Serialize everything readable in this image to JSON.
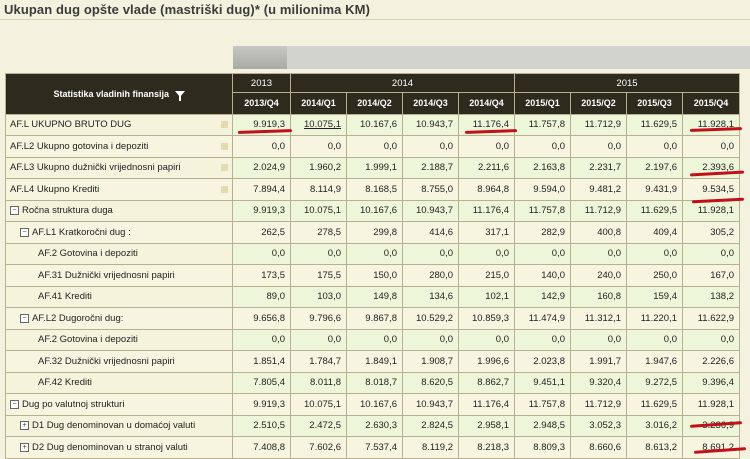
{
  "page": {
    "title": "Ukupan dug opšte vlade (mastriški dug)* (u milionima KM)"
  },
  "table": {
    "stub_header": "Statistika vladinih finansija",
    "years": [
      "2013",
      "2014",
      "2015"
    ],
    "periods": [
      "2013/Q4",
      "2014/Q1",
      "2014/Q2",
      "2014/Q3",
      "2014/Q4",
      "2015/Q1",
      "2015/Q2",
      "2015/Q3",
      "2015/Q4"
    ],
    "rows": [
      {
        "label": "AF.L UKUPNO BRUTO DUG",
        "values": [
          "9.919,3",
          "10.075,1",
          "10.167,6",
          "10.943,7",
          "11.176,4",
          "11.757,8",
          "11.712,9",
          "11.629,5",
          "11.928,1"
        ]
      },
      {
        "label": "AF.L2 Ukupno gotovina i depoziti",
        "values": [
          "0,0",
          "0,0",
          "0,0",
          "0,0",
          "0,0",
          "0,0",
          "0,0",
          "0,0",
          "0,0"
        ]
      },
      {
        "label": "AF.L3 Ukupno dužnički vrijednosni papiri",
        "values": [
          "2.024,9",
          "1.960,2",
          "1.999,1",
          "2.188,7",
          "2.211,6",
          "2.163,8",
          "2.231,7",
          "2.197,6",
          "2.393,6"
        ]
      },
      {
        "label": "AF.L4 Ukupno Krediti",
        "values": [
          "7.894,4",
          "8.114,9",
          "8.168,5",
          "8.755,0",
          "8.964,8",
          "9.594,0",
          "9.481,2",
          "9.431,9",
          "9.534,5"
        ]
      },
      {
        "label": "Ročna struktura duga",
        "values": [
          "9.919,3",
          "10.075,1",
          "10.167,6",
          "10.943,7",
          "11.176,4",
          "11.757,8",
          "11.712,9",
          "11.629,5",
          "11.928,1"
        ]
      },
      {
        "label": "AF.L1 Kratkoročni dug :",
        "values": [
          "262,5",
          "278,5",
          "299,8",
          "414,6",
          "317,1",
          "282,9",
          "400,8",
          "409,4",
          "305,2"
        ]
      },
      {
        "label": "AF.2 Gotovina i depoziti",
        "values": [
          "0,0",
          "0,0",
          "0,0",
          "0,0",
          "0,0",
          "0,0",
          "0,0",
          "0,0",
          "0,0"
        ]
      },
      {
        "label": "AF.31 Dužnički vrijednosni papiri",
        "values": [
          "173,5",
          "175,5",
          "150,0",
          "280,0",
          "215,0",
          "140,0",
          "240,0",
          "250,0",
          "167,0"
        ]
      },
      {
        "label": "AF.41 Krediti",
        "values": [
          "89,0",
          "103,0",
          "149,8",
          "134,6",
          "102,1",
          "142,9",
          "160,8",
          "159,4",
          "138,2"
        ]
      },
      {
        "label": "AF.L2 Dugoročni dug:",
        "values": [
          "9.656,8",
          "9.796,6",
          "9.867,8",
          "10.529,2",
          "10.859,3",
          "11.474,9",
          "11.312,1",
          "11.220,1",
          "11.622,9"
        ]
      },
      {
        "label": "AF.2 Gotovina i depoziti",
        "values": [
          "0,0",
          "0,0",
          "0,0",
          "0,0",
          "0,0",
          "0,0",
          "0,0",
          "0,0",
          "0,0"
        ]
      },
      {
        "label": "AF.32 Dužnički vrijednosni papiri",
        "values": [
          "1.851,4",
          "1.784,7",
          "1.849,1",
          "1.908,7",
          "1.996,6",
          "2.023,8",
          "1.991,7",
          "1.947,6",
          "2.226,6"
        ]
      },
      {
        "label": "AF.42 Krediti",
        "values": [
          "7.805,4",
          "8.011,8",
          "8.018,7",
          "8.620,5",
          "8.862,7",
          "9.451,1",
          "9.320,4",
          "9.272,5",
          "9.396,4"
        ]
      },
      {
        "label": "Dug po valutnoj strukturi",
        "values": [
          "9.919,3",
          "10.075,1",
          "10.167,6",
          "10.943,7",
          "11.176,4",
          "11.757,8",
          "11.712,9",
          "11.629,5",
          "11.928,1"
        ]
      },
      {
        "label": "D1 Dug denominovan u domaćoj valuti",
        "values": [
          "2.510,5",
          "2.472,5",
          "2.630,3",
          "2.824,5",
          "2.958,1",
          "2.948,5",
          "3.052,3",
          "3.016,2",
          "3.236,9"
        ]
      },
      {
        "label": "D2 Dug denominovan u stranoj valuti",
        "values": [
          "7.408,8",
          "7.602,6",
          "7.537,4",
          "8.119,2",
          "8.218,3",
          "8.809,3",
          "8.660,6",
          "8.613,2",
          "8.691,2"
        ]
      }
    ]
  },
  "colors": {
    "header_bg": "#2f2a1e",
    "row_bg": "#eef6da",
    "label_bg": "#f6f3dc",
    "annotation_red": "#c0101a"
  },
  "icons": {
    "filter": "funnel-icon",
    "expanded": "minus-box",
    "collapsed": "plus-box"
  }
}
